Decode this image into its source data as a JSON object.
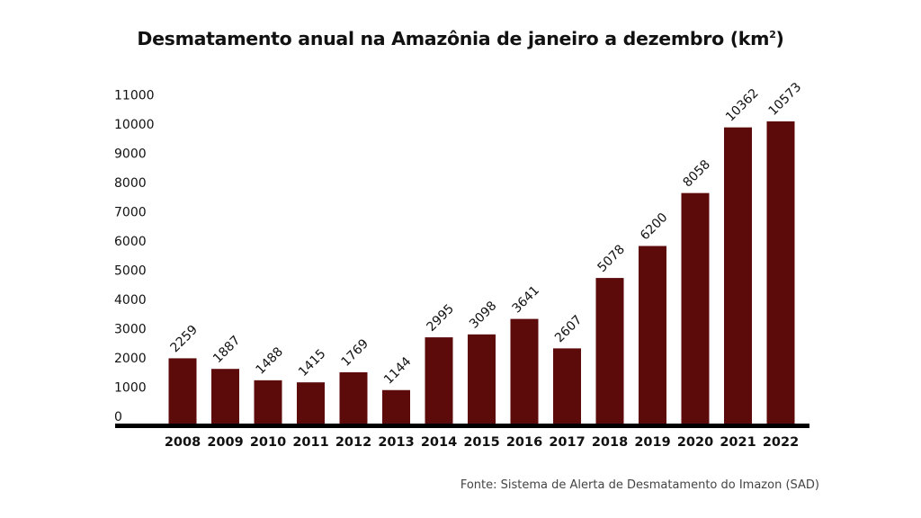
{
  "chart_data": {
    "type": "bar",
    "title": "Desmatamento anual na Amazônia de janeiro a dezembro (km",
    "title_superscript": "2",
    "title_suffix": ")",
    "xlabel": "",
    "ylabel": "",
    "categories": [
      "2008",
      "2009",
      "2010",
      "2011",
      "2012",
      "2013",
      "2014",
      "2015",
      "2016",
      "2017",
      "2018",
      "2019",
      "2020",
      "2021",
      "2022"
    ],
    "values": [
      2259,
      1887,
      1488,
      1415,
      1769,
      1144,
      2995,
      3098,
      3641,
      2607,
      5078,
      6200,
      8058,
      10362,
      10573
    ],
    "data_labels": [
      "2259",
      "1887",
      "1488",
      "1415",
      "1769",
      "1144",
      "2995",
      "3098",
      "3641",
      "2607",
      "5078",
      "6200",
      "8058",
      "10362",
      "10573"
    ],
    "yticks": [
      0,
      1000,
      2000,
      3000,
      4000,
      5000,
      6000,
      7000,
      8000,
      9000,
      10000,
      11000
    ],
    "ylim": [
      0,
      11000
    ],
    "grid": false,
    "legend": "none",
    "bar_color": "#5c0a0a",
    "axis_color": "#000000",
    "source": "Fonte: Sistema de Alerta de Desmatamento do Imazon (SAD)"
  }
}
